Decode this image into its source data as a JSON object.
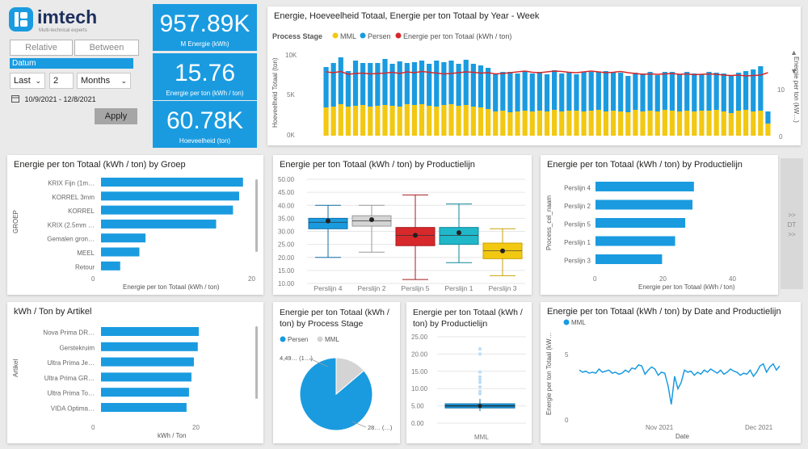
{
  "logo": {
    "name": "imtech",
    "tagline": "Multi-technical experts"
  },
  "filters": {
    "relative_label": "Relative",
    "between_label": "Between",
    "datum_label": "Datum",
    "period_value": "Last",
    "count_value": "2",
    "unit_value": "Months",
    "date_range": "10/9/2021 - 12/8/2021",
    "apply_label": "Apply"
  },
  "kpis": [
    {
      "value": "957.89K",
      "label": "M Energie (kWh)"
    },
    {
      "value": "15.76",
      "label": "Energie per ton (kWh / ton)"
    },
    {
      "value": "60.78K",
      "label": "Hoeveelheid (ton)"
    }
  ],
  "weekly_chart": {
    "title": "Energie, Hoeveelheid Totaal, Energie per ton Totaal by Year - Week",
    "legend_title": "Process Stage",
    "legend": [
      "MML",
      "Persen",
      "Energie per ton Totaal (kWh / ton)"
    ],
    "ylabel_left": "Hoeveelheid Totaal (ton)",
    "ylabel_right": "Energie per ton (kW…)",
    "yticks_left": [
      "10K",
      "5K",
      "0K"
    ],
    "yticks_right": [
      "10",
      "0"
    ]
  },
  "groep_chart": {
    "title": "Energie per ton Totaal (kWh / ton) by Groep",
    "ylabel": "GROEP",
    "xlabel": "Energie per ton Totaal (kWh / ton)",
    "xticks": [
      "0",
      "20"
    ]
  },
  "box_chart": {
    "title": "Energie per ton Totaal (kWh / ton) by Productielijn",
    "yticks": [
      "50.00",
      "45.00",
      "40.00",
      "35.00",
      "30.00",
      "25.00",
      "20.00",
      "15.00",
      "10.00"
    ]
  },
  "persline_chart": {
    "title": "Energie per ton Totaal (kWh / ton) by Productielijn",
    "ylabel": "Process_cel_naam",
    "xlabel": "Energie per ton Totaal (kWh / ton)",
    "xticks": [
      "0",
      "20",
      "40"
    ]
  },
  "nav": {
    "label": "DT",
    "chev": ">>"
  },
  "artikel_chart": {
    "title": "kWh / Ton by Artikel",
    "ylabel": "Artikel",
    "xlabel": "kWh / Ton",
    "xticks": [
      "0",
      "20"
    ]
  },
  "pie_chart": {
    "title_line1": "Energie per ton Totaal (kWh /",
    "title_line2": "ton) by Process Stage",
    "legend": [
      "Persen",
      "MML"
    ],
    "label_small": "4,49… (1…)",
    "label_large": "28… (…)"
  },
  "small_box_chart": {
    "title_line1": "Energie per ton Totaal (kWh /",
    "title_line2": "ton) by Productielijn",
    "yticks": [
      "25.00",
      "20.00",
      "15.00",
      "10.00",
      "5.00",
      "0.00"
    ],
    "xlabel": "MML"
  },
  "date_chart": {
    "title": "Energie per ton Totaal (kWh / ton) by Date and Productielijn",
    "legend": [
      "MML"
    ],
    "ylabel": "Energie per ton Totaal (kW…",
    "yticks": [
      "5",
      "0"
    ],
    "xticks": [
      "Nov 2021",
      "Dec 2021"
    ],
    "xlabel": "Date"
  },
  "colors": {
    "blue": "#1a9be0",
    "yellow": "#f2c811",
    "red": "#d7282b",
    "grey": "#d4d4d4",
    "teal": "#20b7c9"
  },
  "chart_data": [
    {
      "type": "bar",
      "title": "Energie, Hoeveelheid Totaal, Energie per ton Totaal by Year - Week",
      "ylim": [
        0,
        10000
      ],
      "series": [
        {
          "name": "MML",
          "values": [
            3500,
            3600,
            3900,
            3600,
            3700,
            3800,
            3600,
            3700,
            3800,
            3700,
            3600,
            3900,
            3800,
            3900,
            3700,
            3600,
            3800,
            3900,
            3700,
            3800,
            3600,
            3500,
            3300,
            3000,
            3100,
            2900,
            3000,
            3100,
            3000,
            3100,
            3000,
            3200,
            3000,
            3100,
            3100,
            3000,
            3100,
            3200,
            3000,
            3100,
            3000,
            2900,
            3200,
            3000,
            3100,
            3000,
            3200,
            3100,
            3000,
            3100,
            3000,
            3100,
            3100,
            3200,
            3000,
            2800,
            3100,
            3200,
            3000,
            3100,
            1500
          ]
        },
        {
          "name": "Persen",
          "values": [
            5000,
            5400,
            5800,
            4400,
            5600,
            5200,
            5400,
            5300,
            5700,
            5200,
            5600,
            5100,
            5300,
            5400,
            5200,
            5700,
            5300,
            5400,
            5200,
            5600,
            5300,
            5200,
            5100,
            4600,
            4800,
            5000,
            4700,
            4900,
            4700,
            4800,
            4600,
            4900,
            4700,
            4800,
            4500,
            4900,
            4800,
            4700,
            5000,
            4700,
            4800,
            4500,
            4600,
            4700,
            4800,
            4500,
            4700,
            4800,
            4600,
            4800,
            4700,
            4500,
            4800,
            4600,
            4700,
            4600,
            4700,
            4800,
            5200,
            5500,
            1500
          ]
        },
        {
          "name": "Energie per ton Totaal (kWh / ton)",
          "values": [
            15.8,
            15.6,
            15.9,
            15.2,
            15.4,
            15.5,
            15.3,
            15.4,
            15.5,
            15.7,
            15.4,
            15.8,
            15.6,
            15.9,
            15.7,
            15.5,
            15.3,
            15.4,
            15.6,
            15.8,
            15.7,
            15.5,
            15.6,
            15.3,
            15.4,
            15.6,
            15.8,
            16.0,
            15.7,
            15.6,
            15.8,
            16.0,
            15.9,
            15.7,
            15.6,
            15.8,
            16.0,
            15.8,
            15.6,
            15.7,
            15.9,
            15.6,
            15.4,
            15.2,
            15.3,
            15.2,
            15.3,
            15.4,
            15.2,
            15.3,
            15.1,
            15.2,
            15.3,
            15.2,
            15.0,
            14.9,
            15.0,
            14.8,
            14.9,
            15.0,
            15.6
          ]
        }
      ]
    },
    {
      "type": "bar",
      "title": "Energie per ton Totaal (kWh / ton) by Groep",
      "categories": [
        "KRIX Fijn (1m…",
        "KORREL 3mm",
        "KORREL",
        "KRIX (2.5mm …",
        "Gemalen gron…",
        "MEEL",
        "Retour"
      ],
      "values": [
        18.5,
        18.0,
        17.2,
        15.0,
        5.8,
        5.0,
        2.5
      ],
      "xlim": [
        0,
        20
      ]
    },
    {
      "type": "box",
      "title": "Energie per ton Totaal (kWh / ton) by Productielijn",
      "categories": [
        "Perslijn 4",
        "Perslijn 2",
        "Perslijn 5",
        "Perslijn 1",
        "Perslijn 3"
      ],
      "series": [
        {
          "name": "Perslijn 4",
          "values": [
            20.0,
            31.0,
            33.5,
            35.0,
            40.0
          ],
          "mean": 34.0
        },
        {
          "name": "Perslijn 2",
          "values": [
            22.0,
            32.0,
            34.0,
            36.0,
            40.0
          ],
          "mean": 34.5
        },
        {
          "name": "Perslijn 5",
          "values": [
            11.5,
            24.5,
            28.5,
            31.5,
            44.0
          ],
          "mean": 28.5
        },
        {
          "name": "Perslijn 1",
          "values": [
            18.0,
            25.0,
            28.5,
            31.5,
            40.5
          ],
          "mean": 29.5
        },
        {
          "name": "Perslijn 3",
          "values": [
            13.0,
            19.5,
            22.5,
            25.5,
            31.0
          ],
          "mean": 22.5
        }
      ],
      "ylim": [
        10,
        50
      ]
    },
    {
      "type": "bar",
      "title": "Energie per ton Totaal (kWh / ton) by Productielijn",
      "categories": [
        "Perslijn 4",
        "Perslijn 2",
        "Perslijn 5",
        "Perslijn 1",
        "Perslijn 3"
      ],
      "values": [
        34,
        33.5,
        31,
        27.5,
        23
      ],
      "xlim": [
        0,
        48
      ]
    },
    {
      "type": "bar",
      "title": "kWh / Ton by Artikel",
      "categories": [
        "Nova Prima DR…",
        "Gerstekruim",
        "Ultra Prima Je…",
        "Ultra Prima GR…",
        "Ultra Prima To…",
        "VIDA Optima…"
      ],
      "values": [
        20.5,
        19.8,
        19.0,
        18.5,
        18.0,
        17.5
      ],
      "xlim": [
        0,
        20
      ]
    },
    {
      "type": "pie",
      "title": "Energie per ton Totaal (kWh / ton) by Process Stage",
      "categories": [
        "Persen",
        "MML"
      ],
      "values": [
        28,
        4.49
      ]
    },
    {
      "type": "box",
      "title": "Energie per ton Totaal (kWh / ton) by Productielijn",
      "categories": [
        "MML"
      ],
      "series": [
        {
          "name": "MML",
          "values": [
            3.5,
            4.4,
            5.0,
            5.6,
            7.0
          ],
          "mean": 5.0
        }
      ],
      "ylim": [
        0,
        25
      ]
    },
    {
      "type": "line",
      "title": "Energie per ton Totaal (kWh / ton) by Date and Productielijn",
      "series": [
        {
          "name": "MML",
          "values": [
            4.8,
            4.6,
            4.7,
            4.5,
            4.6,
            4.5,
            4.9,
            4.6,
            4.7,
            4.8,
            4.5,
            4.6,
            4.4,
            4.5,
            4.8,
            4.6,
            5.0,
            4.9,
            5.3,
            5.2,
            4.4,
            4.8,
            5.1,
            4.9,
            4.3,
            4.6,
            4.5,
            3.3,
            1.5,
            4.2,
            3.0,
            3.6,
            4.8,
            4.6,
            4.7,
            4.3,
            4.6,
            4.4,
            4.8,
            4.6,
            4.9,
            4.7,
            4.5,
            4.8,
            4.4,
            4.6,
            4.9,
            4.7,
            4.6,
            4.3,
            4.5,
            4.4,
            4.8,
            4.2,
            4.6,
            5.2,
            5.4,
            4.6,
            5.1,
            5.4,
            4.8,
            5.2
          ]
        }
      ],
      "ylim": [
        0,
        7
      ]
    }
  ]
}
